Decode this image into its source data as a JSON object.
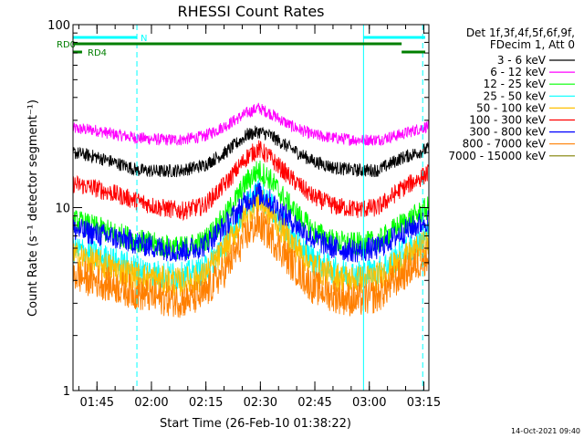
{
  "chart_data": {
    "type": "line",
    "title": "RHESSI Count Rates",
    "xlabel": "Start Time (26-Feb-10 01:38:22)",
    "ylabel": "Count Rate (s⁻¹ detector segment⁻¹)",
    "yscale": "log",
    "ylim": [
      1,
      100
    ],
    "y_ticks": [
      {
        "value": 1,
        "label": "1"
      },
      {
        "value": 10,
        "label": "10"
      },
      {
        "value": 100,
        "label": "100"
      }
    ],
    "x_unit": "minutes after 01:38:22",
    "xlim": [
      0,
      98
    ],
    "x_ticks": [
      {
        "value": 6.6,
        "label": "01:45"
      },
      {
        "value": 21.6,
        "label": "02:00"
      },
      {
        "value": 36.6,
        "label": "02:15"
      },
      {
        "value": 51.6,
        "label": "02:30"
      },
      {
        "value": 66.6,
        "label": "02:45"
      },
      {
        "value": 81.6,
        "label": "03:00"
      },
      {
        "value": 96.6,
        "label": "03:15"
      }
    ],
    "x_minor_step": 5,
    "x_minor_start": 1.6,
    "legend_header": [
      "Det 1f,3f,4f,5f,6f,9f,",
      "FDecim 1, Att 0"
    ],
    "series": [
      {
        "name": "3 - 6 keV",
        "color": "#000000",
        "x": [
          0,
          6,
          12,
          18,
          24,
          30,
          36,
          42,
          48,
          51,
          54,
          60,
          66,
          72,
          78,
          84,
          90,
          98
        ],
        "values": [
          20.0,
          19.0,
          17.5,
          16.0,
          15.8,
          16.0,
          17.0,
          20.0,
          25.0,
          26.0,
          25.0,
          21.0,
          18.0,
          16.5,
          16.0,
          16.0,
          18.5,
          21.0
        ]
      },
      {
        "name": "6 - 12 keV",
        "color": "#ff00ff",
        "x": [
          0,
          6,
          12,
          18,
          24,
          30,
          36,
          42,
          48,
          51,
          54,
          60,
          66,
          72,
          78,
          84,
          90,
          98
        ],
        "values": [
          27.0,
          26.5,
          25.0,
          24.0,
          23.5,
          23.5,
          24.5,
          28.0,
          33.0,
          35.0,
          33.0,
          28.0,
          25.0,
          24.0,
          23.5,
          23.5,
          25.0,
          28.0
        ]
      },
      {
        "name": "12 - 25 keV",
        "color": "#00ff00",
        "x": [
          0,
          6,
          12,
          18,
          24,
          30,
          36,
          42,
          48,
          51,
          54,
          60,
          66,
          72,
          78,
          84,
          90,
          98
        ],
        "values": [
          8.5,
          7.8,
          7.2,
          6.6,
          6.2,
          6.0,
          6.5,
          9.0,
          14.0,
          16.0,
          14.5,
          10.0,
          7.5,
          6.5,
          6.3,
          6.5,
          8.0,
          10.0
        ]
      },
      {
        "name": "25 - 50 keV",
        "color": "#00ffff",
        "x": [
          0,
          6,
          12,
          18,
          24,
          30,
          36,
          42,
          48,
          51,
          54,
          60,
          66,
          72,
          78,
          84,
          90,
          98
        ],
        "values": [
          6.0,
          5.5,
          5.0,
          4.6,
          4.3,
          4.2,
          4.5,
          6.5,
          10.5,
          12.0,
          10.5,
          7.0,
          5.2,
          4.5,
          4.3,
          4.5,
          5.5,
          7.0
        ]
      },
      {
        "name": "50 - 100 keV",
        "color": "#ffbf00",
        "x": [
          0,
          6,
          12,
          18,
          24,
          30,
          36,
          42,
          48,
          51,
          54,
          60,
          66,
          72,
          78,
          84,
          90,
          98
        ],
        "values": [
          5.5,
          5.0,
          4.6,
          4.2,
          4.0,
          3.9,
          4.2,
          6.0,
          9.5,
          11.0,
          9.5,
          6.5,
          4.8,
          4.2,
          4.0,
          4.2,
          5.0,
          6.5
        ]
      },
      {
        "name": "100 - 300 keV",
        "color": "#ff0000",
        "x": [
          0,
          6,
          12,
          18,
          24,
          30,
          36,
          42,
          48,
          51,
          54,
          60,
          66,
          72,
          78,
          84,
          90,
          98
        ],
        "values": [
          13.5,
          12.8,
          11.8,
          10.8,
          10.0,
          9.6,
          10.2,
          13.5,
          19.0,
          21.0,
          19.0,
          14.5,
          11.5,
          10.2,
          9.8,
          10.0,
          12.5,
          15.5
        ]
      },
      {
        "name": "300 - 800 keV",
        "color": "#0000ff",
        "x": [
          0,
          6,
          12,
          18,
          24,
          30,
          36,
          42,
          48,
          51,
          54,
          60,
          66,
          72,
          78,
          84,
          90,
          98
        ],
        "values": [
          7.6,
          7.2,
          6.8,
          6.4,
          6.0,
          5.8,
          6.2,
          8.0,
          11.0,
          12.0,
          11.0,
          8.5,
          6.8,
          6.0,
          5.8,
          6.0,
          7.2,
          8.6
        ]
      },
      {
        "name": "800 - 7000 keV",
        "color": "#ff7f00",
        "x": [
          0,
          6,
          12,
          18,
          24,
          30,
          36,
          42,
          48,
          51,
          54,
          60,
          66,
          72,
          78,
          84,
          90,
          98
        ],
        "values": [
          4.3,
          4.0,
          3.7,
          3.4,
          3.2,
          3.1,
          3.3,
          4.6,
          7.2,
          8.2,
          7.2,
          5.0,
          3.7,
          3.3,
          3.1,
          3.3,
          4.2,
          5.5
        ]
      },
      {
        "name": "7000 - 15000 keV",
        "color": "#808000",
        "x": [],
        "values": []
      }
    ],
    "vertical_lines": [
      {
        "x": 0.0,
        "color": "#00ffff",
        "style": "solid"
      },
      {
        "x": 17.6,
        "color": "#00ffff",
        "style": "dashed"
      },
      {
        "x": 80.0,
        "color": "#00ffff",
        "style": "solid"
      },
      {
        "x": 96.3,
        "color": "#00ffff",
        "style": "dashed"
      }
    ],
    "flag_bars": [
      {
        "label": "N",
        "color": "#00ffff",
        "x_segments": [
          [
            0,
            17.6
          ],
          [
            80,
            97
          ]
        ]
      },
      {
        "label": "RD0",
        "color": "#007f00",
        "x_segments": [
          [
            0,
            90.5
          ]
        ]
      },
      {
        "label": "RD4",
        "color": "#007f00",
        "x_segments": [
          [
            0,
            2.5
          ],
          [
            90.5,
            97
          ]
        ]
      }
    ],
    "timestamp": "14-Oct-2021 09:40"
  }
}
